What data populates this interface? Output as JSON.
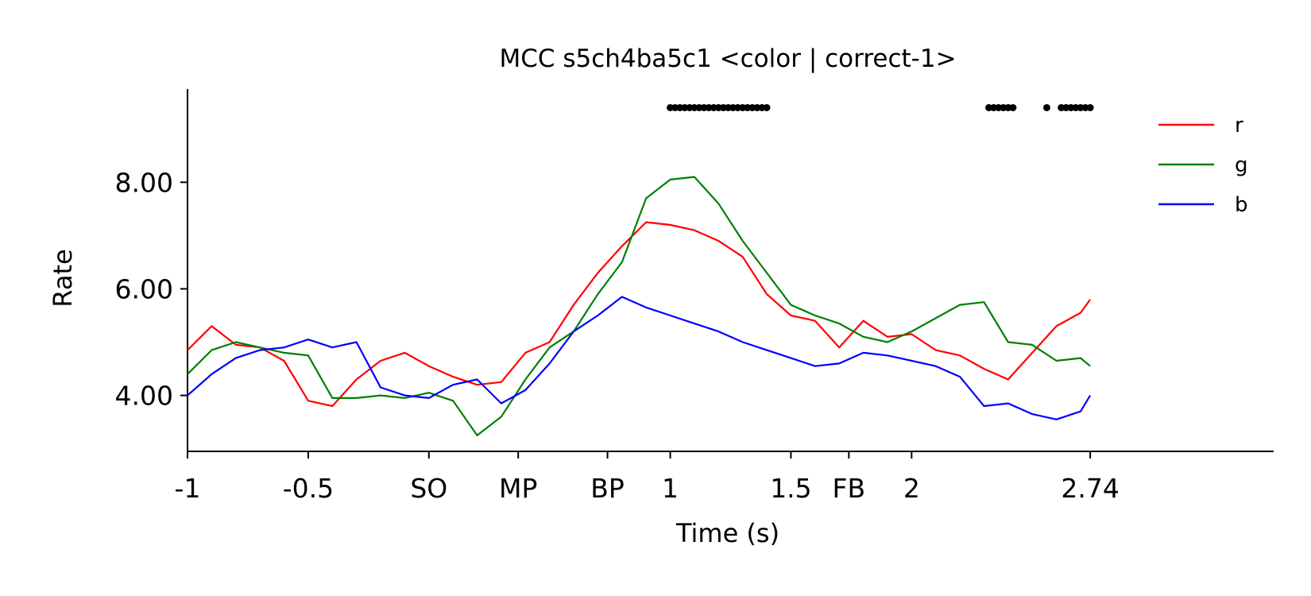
{
  "chart_data": {
    "type": "line",
    "title": "MCC s5ch4ba5c1 <color | correct-1>",
    "xlabel": "Time (s)",
    "ylabel": "Rate",
    "xlim": [
      -1.0,
      3.5
    ],
    "ylim": [
      2.95,
      9.75
    ],
    "grid": false,
    "legend_position": "top-right",
    "x_ticks": [
      {
        "value": -1.0,
        "label": "-1"
      },
      {
        "value": -0.5,
        "label": "-0.5"
      },
      {
        "value": 0.0,
        "label": "SO"
      },
      {
        "value": 0.37,
        "label": "MP"
      },
      {
        "value": 0.74,
        "label": "BP"
      },
      {
        "value": 1.0,
        "label": "1"
      },
      {
        "value": 1.5,
        "label": "1.5"
      },
      {
        "value": 1.74,
        "label": "FB"
      },
      {
        "value": 2.0,
        "label": "2"
      },
      {
        "value": 2.74,
        "label": "2.74"
      }
    ],
    "y_ticks": [
      {
        "value": 4.0,
        "label": "4.00"
      },
      {
        "value": 6.0,
        "label": "6.00"
      },
      {
        "value": 8.0,
        "label": "8.00"
      }
    ],
    "x": [
      -1.0,
      -0.9,
      -0.8,
      -0.7,
      -0.6,
      -0.5,
      -0.4,
      -0.3,
      -0.2,
      -0.1,
      0.0,
      0.1,
      0.2,
      0.3,
      0.4,
      0.5,
      0.6,
      0.7,
      0.8,
      0.9,
      1.0,
      1.1,
      1.2,
      1.3,
      1.4,
      1.5,
      1.6,
      1.7,
      1.8,
      1.9,
      2.0,
      2.1,
      2.2,
      2.3,
      2.4,
      2.5,
      2.6,
      2.7,
      2.74
    ],
    "series": [
      {
        "name": "r",
        "color": "#ff0000",
        "values": [
          4.85,
          5.3,
          4.95,
          4.9,
          4.65,
          3.9,
          3.8,
          4.3,
          4.65,
          4.8,
          4.55,
          4.35,
          4.2,
          4.25,
          4.8,
          5.0,
          5.7,
          6.3,
          6.8,
          7.25,
          7.2,
          7.1,
          6.9,
          6.6,
          5.9,
          5.5,
          5.4,
          4.9,
          5.4,
          5.1,
          5.15,
          4.85,
          4.75,
          4.5,
          4.3,
          4.8,
          5.3,
          5.55,
          5.8
        ]
      },
      {
        "name": "g",
        "color": "#008000",
        "values": [
          4.4,
          4.85,
          5.0,
          4.9,
          4.8,
          4.75,
          3.95,
          3.95,
          4.0,
          3.95,
          4.05,
          3.9,
          3.25,
          3.6,
          4.3,
          4.9,
          5.2,
          5.9,
          6.5,
          7.7,
          8.05,
          8.1,
          7.6,
          6.9,
          6.3,
          5.7,
          5.5,
          5.35,
          5.1,
          5.0,
          5.2,
          5.45,
          5.7,
          5.75,
          5.0,
          4.95,
          4.65,
          4.7,
          4.55
        ]
      },
      {
        "name": "b",
        "color": "#0000ff",
        "values": [
          4.0,
          4.4,
          4.7,
          4.85,
          4.9,
          5.05,
          4.9,
          5.0,
          4.15,
          4.0,
          3.95,
          4.2,
          4.3,
          3.85,
          4.1,
          4.6,
          5.2,
          5.5,
          5.85,
          5.65,
          5.5,
          5.35,
          5.2,
          5.0,
          4.85,
          4.7,
          4.55,
          4.6,
          4.8,
          4.75,
          4.65,
          4.55,
          4.35,
          3.8,
          3.85,
          3.65,
          3.55,
          3.7,
          4.0
        ]
      }
    ],
    "significance_markers": {
      "y": 9.4,
      "x": [
        1.0,
        1.02,
        1.04,
        1.06,
        1.08,
        1.1,
        1.12,
        1.14,
        1.16,
        1.18,
        1.2,
        1.22,
        1.24,
        1.26,
        1.28,
        1.3,
        1.32,
        1.34,
        1.36,
        1.38,
        1.4,
        2.32,
        2.34,
        2.36,
        2.38,
        2.4,
        2.42,
        2.56,
        2.62,
        2.64,
        2.66,
        2.68,
        2.7,
        2.72,
        2.74
      ]
    }
  }
}
